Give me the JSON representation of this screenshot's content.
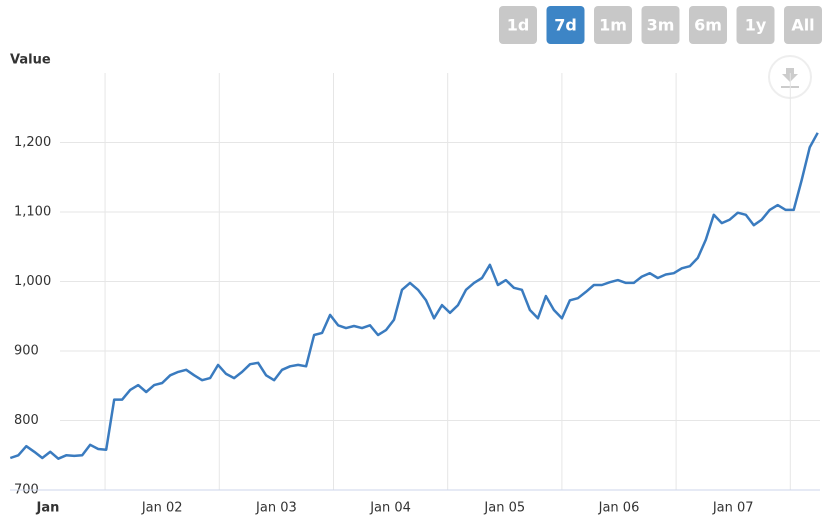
{
  "range_selector": {
    "buttons": [
      "1d",
      "7d",
      "1m",
      "3m",
      "6m",
      "1y",
      "All"
    ],
    "selected": 1
  },
  "chart_data": {
    "type": "line",
    "y_axis_title": "Value",
    "x": [
      -0.33,
      -0.26,
      -0.19,
      -0.12,
      -0.05,
      0.02,
      0.09,
      0.16,
      0.23,
      0.3,
      0.37,
      0.44,
      0.51,
      0.58,
      0.65,
      0.72,
      0.79,
      0.86,
      0.93,
      1.0,
      1.07,
      1.14,
      1.21,
      1.28,
      1.35,
      1.42,
      1.49,
      1.56,
      1.63,
      1.7,
      1.77,
      1.84,
      1.91,
      1.98,
      2.05,
      2.12,
      2.19,
      2.26,
      2.33,
      2.4,
      2.47,
      2.54,
      2.61,
      2.68,
      2.75,
      2.82,
      2.89,
      2.96,
      3.03,
      3.1,
      3.17,
      3.24,
      3.31,
      3.38,
      3.45,
      3.52,
      3.59,
      3.66,
      3.73,
      3.8,
      3.87,
      3.94,
      4.01,
      4.08,
      4.15,
      4.22,
      4.29,
      4.36,
      4.43,
      4.5,
      4.57,
      4.64,
      4.71,
      4.78,
      4.85,
      4.92,
      4.99,
      5.06,
      5.13,
      5.2,
      5.27,
      5.34,
      5.41,
      5.48,
      5.55,
      5.62,
      5.69,
      5.76,
      5.83,
      5.9,
      5.97,
      6.04,
      6.11,
      6.18,
      6.25,
      6.32,
      6.39,
      6.46,
      6.53,
      6.6,
      6.67,
      6.74
    ],
    "series": [
      {
        "color": "#3a7bbf",
        "values": [
          746,
          750,
          763,
          755,
          746,
          755,
          745,
          750,
          749,
          750,
          765,
          759,
          758,
          830,
          830,
          844,
          851,
          841,
          851,
          854,
          865,
          870,
          873,
          865,
          858,
          861,
          880,
          867,
          861,
          870,
          881,
          883,
          865,
          858,
          873,
          878,
          880,
          878,
          923,
          926,
          952,
          937,
          933,
          936,
          933,
          937,
          923,
          930,
          945,
          988,
          998,
          988,
          973,
          947,
          966,
          955,
          966,
          988,
          998,
          1005,
          1024,
          995,
          1002,
          991,
          988,
          959,
          947,
          979,
          959,
          947,
          973,
          976,
          985,
          995,
          995,
          999,
          1002,
          998,
          998,
          1007,
          1012,
          1005,
          1010,
          1012,
          1019,
          1022,
          1034,
          1060,
          1096,
          1084,
          1089,
          1099,
          1096,
          1081,
          1089,
          1103,
          1110,
          1103,
          1103,
          1146,
          1193,
          1214
        ]
      }
    ],
    "xlim": [
      -0.35,
      6.76
    ],
    "xticks": [
      {
        "value": 0,
        "label": "Jan"
      },
      {
        "value": 1,
        "label": "Jan 02"
      },
      {
        "value": 2,
        "label": "Jan 03"
      },
      {
        "value": 3,
        "label": "Jan 04"
      },
      {
        "value": 4,
        "label": "Jan 05"
      },
      {
        "value": 5,
        "label": "Jan 06"
      },
      {
        "value": 6,
        "label": "Jan 07"
      }
    ],
    "ylim": [
      700,
      1300
    ],
    "yticks": [
      700,
      800,
      900,
      {
        "value": 1000,
        "label": "1,000"
      },
      {
        "value": 1100,
        "label": "1,100"
      },
      {
        "value": 1200,
        "label": "1,200"
      }
    ],
    "grid": true
  }
}
